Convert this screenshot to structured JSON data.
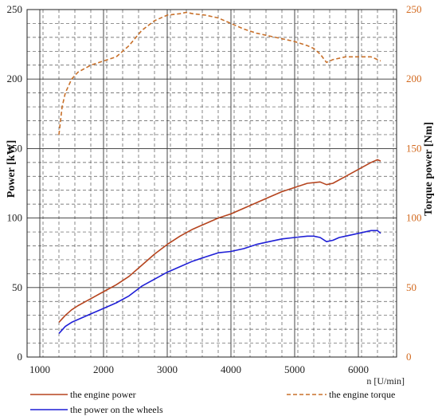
{
  "chart_data": {
    "type": "line",
    "title": "",
    "xlabel": "n [U/min]",
    "ylabel": "Power [kW]",
    "y2label": "Torque power [Nm]",
    "xlim": [
      800,
      6600
    ],
    "ylim": [
      0,
      250
    ],
    "y2lim": [
      0,
      250
    ],
    "x_ticks": [
      1000,
      2000,
      3000,
      4000,
      5000,
      6000
    ],
    "y_ticks": [
      0,
      50,
      100,
      150,
      200,
      250
    ],
    "y2_ticks": [
      0,
      50,
      100,
      150,
      200,
      250
    ],
    "grid": true,
    "legend_position": "bottom",
    "series": [
      {
        "name": "the engine power",
        "axis": "left",
        "color": "#b5441e",
        "style": "solid",
        "x": [
          1300,
          1400,
          1500,
          1600,
          1800,
          2000,
          2200,
          2400,
          2600,
          2800,
          3000,
          3200,
          3400,
          3600,
          3800,
          4000,
          4200,
          4400,
          4600,
          4800,
          5000,
          5200,
          5400,
          5500,
          5600,
          5800,
          6000,
          6200,
          6300,
          6350
        ],
        "y": [
          25,
          30,
          34,
          37,
          42,
          47,
          52,
          58,
          66,
          74,
          81,
          87,
          92,
          96,
          100,
          103,
          107,
          111,
          115,
          119,
          122,
          125,
          126,
          124,
          125,
          130,
          135,
          140,
          142,
          141
        ]
      },
      {
        "name": "the power on the wheels",
        "axis": "left",
        "color": "#1f1fd6",
        "style": "solid",
        "x": [
          1300,
          1400,
          1500,
          1600,
          1800,
          2000,
          2200,
          2400,
          2600,
          2800,
          3000,
          3200,
          3400,
          3600,
          3800,
          4000,
          4200,
          4400,
          4600,
          4800,
          5000,
          5200,
          5300,
          5400,
          5500,
          5600,
          5700,
          5800,
          6000,
          6200,
          6300,
          6350
        ],
        "y": [
          17,
          22,
          25,
          27,
          31,
          35,
          39,
          44,
          51,
          56,
          61,
          65,
          69,
          72,
          75,
          76,
          78,
          81,
          83,
          85,
          86,
          87,
          87,
          86,
          83,
          84,
          86,
          87,
          89,
          91,
          91,
          89
        ]
      },
      {
        "name": "the engine torque",
        "axis": "right",
        "color": "#c8702a",
        "style": "dashed",
        "x": [
          1300,
          1350,
          1400,
          1500,
          1600,
          1800,
          2000,
          2200,
          2400,
          2600,
          2800,
          3000,
          3200,
          3300,
          3400,
          3600,
          3800,
          4000,
          4200,
          4400,
          4600,
          4800,
          5000,
          5200,
          5300,
          5400,
          5500,
          5600,
          5800,
          6000,
          6200,
          6350
        ],
        "y": [
          160,
          180,
          190,
          200,
          205,
          210,
          213,
          216,
          224,
          235,
          242,
          246,
          247,
          248,
          247,
          246,
          244,
          240,
          236,
          233,
          231,
          229,
          227,
          224,
          222,
          218,
          212,
          214,
          216,
          216,
          216,
          213
        ]
      }
    ]
  }
}
